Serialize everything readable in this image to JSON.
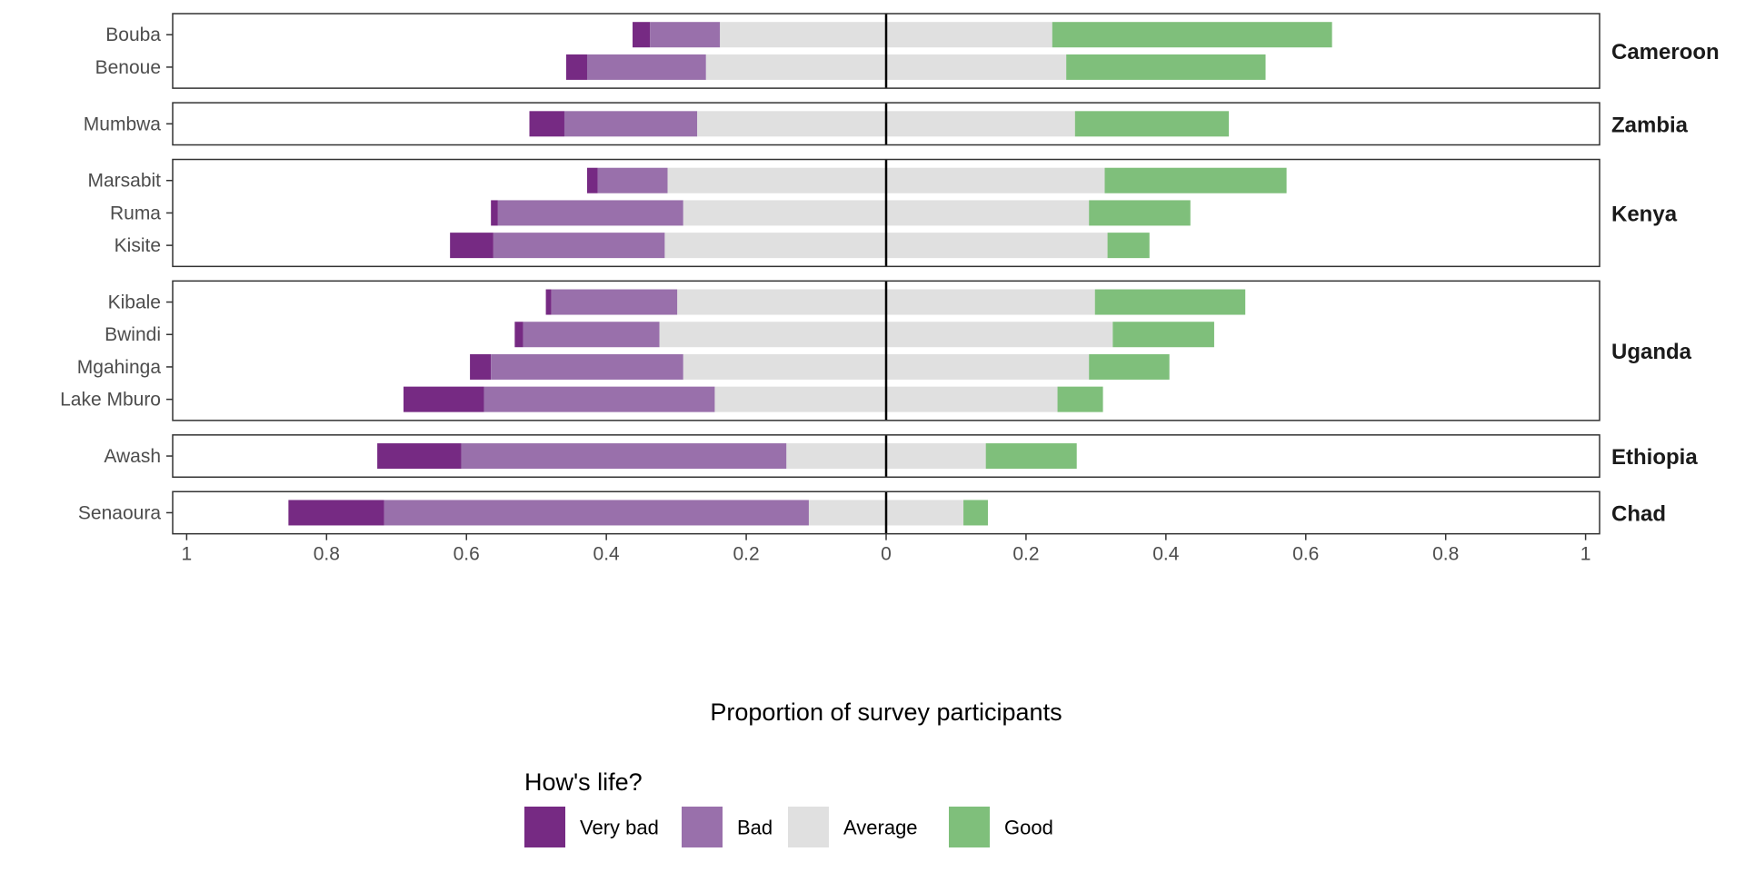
{
  "chart_data": {
    "type": "bar",
    "orientation": "horizontal",
    "stacking": "diverging",
    "xlabel": "Proportion of survey participants",
    "x_ticks": [
      -1,
      -0.8,
      -0.6,
      -0.4,
      -0.2,
      0,
      0.2,
      0.4,
      0.6,
      0.8,
      1
    ],
    "x_tick_labels": [
      "1",
      "0.8",
      "0.6",
      "0.4",
      "0.2",
      "0",
      "0.2",
      "0.4",
      "0.6",
      "0.8",
      "1"
    ],
    "xlim": [
      -1.02,
      1.02
    ],
    "legend": {
      "title": "How's life?",
      "placement": "bottom",
      "entries": [
        {
          "label": "Very bad",
          "color": "#762a83"
        },
        {
          "label": "Bad",
          "color": "#9970ab"
        },
        {
          "label": "Average",
          "color": "#e0e0e0"
        },
        {
          "label": "Good",
          "color": "#7fbf7b"
        }
      ]
    },
    "panels": [
      {
        "country": "Cameroon",
        "sites": [
          {
            "name": "Bouba",
            "very_bad": 0.025,
            "bad": 0.1,
            "average": 0.475,
            "good": 0.4
          },
          {
            "name": "Benoue",
            "very_bad": 0.03,
            "bad": 0.17,
            "average": 0.515,
            "good": 0.285
          }
        ]
      },
      {
        "country": "Zambia",
        "sites": [
          {
            "name": "Mumbwa",
            "very_bad": 0.05,
            "bad": 0.19,
            "average": 0.54,
            "good": 0.22
          }
        ]
      },
      {
        "country": "Kenya",
        "sites": [
          {
            "name": "Marsabit",
            "very_bad": 0.015,
            "bad": 0.1,
            "average": 0.625,
            "good": 0.26
          },
          {
            "name": "Ruma",
            "very_bad": 0.01,
            "bad": 0.265,
            "average": 0.58,
            "good": 0.145
          },
          {
            "name": "Kisite",
            "very_bad": 0.062,
            "bad": 0.245,
            "average": 0.633,
            "good": 0.06
          }
        ]
      },
      {
        "country": "Uganda",
        "sites": [
          {
            "name": "Kibale",
            "very_bad": 0.008,
            "bad": 0.18,
            "average": 0.597,
            "good": 0.215
          },
          {
            "name": "Bwindi",
            "very_bad": 0.012,
            "bad": 0.195,
            "average": 0.648,
            "good": 0.145
          },
          {
            "name": "Mgahinga",
            "very_bad": 0.03,
            "bad": 0.275,
            "average": 0.58,
            "good": 0.115
          },
          {
            "name": "Lake Mburo",
            "very_bad": 0.115,
            "bad": 0.33,
            "average": 0.49,
            "good": 0.065
          }
        ]
      },
      {
        "country": "Ethiopia",
        "sites": [
          {
            "name": "Awash",
            "very_bad": 0.12,
            "bad": 0.465,
            "average": 0.285,
            "good": 0.13
          }
        ]
      },
      {
        "country": "Chad",
        "sites": [
          {
            "name": "Senaoura",
            "very_bad": 0.137,
            "bad": 0.607,
            "average": 0.221,
            "good": 0.035
          }
        ]
      }
    ]
  }
}
